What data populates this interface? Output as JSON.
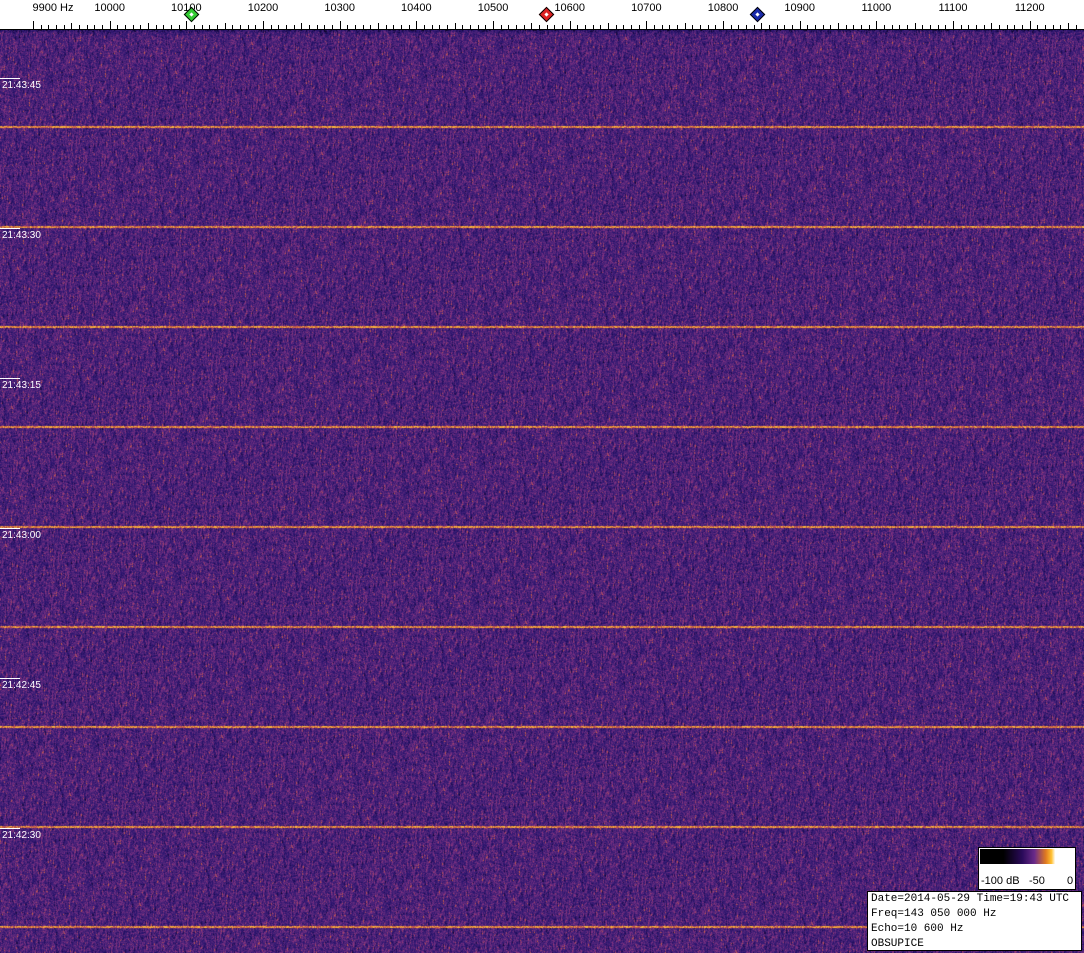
{
  "axis": {
    "unit": "Hz",
    "labels": [
      "9900 Hz",
      "10000",
      "10100",
      "10200",
      "10300",
      "10400",
      "10500",
      "10600",
      "10700",
      "10800",
      "10900",
      "11000",
      "11100",
      "11200"
    ],
    "start_hz": 9900,
    "step_hz": 100
  },
  "markers": [
    {
      "name": "green-marker",
      "color": "#33cc33",
      "freq_hz": 10107
    },
    {
      "name": "red-marker",
      "color": "#dd2222",
      "freq_hz": 10570
    },
    {
      "name": "blue-marker",
      "color": "#1a2aaa",
      "freq_hz": 10845
    }
  ],
  "time_labels": [
    "21:43:45",
    "21:43:30",
    "21:43:15",
    "21:43:00",
    "21:42:45",
    "21:42:30"
  ],
  "colorbar": {
    "labels": [
      "-100 dB",
      "-50",
      "0"
    ]
  },
  "info": {
    "line1": "Date=2014-05-29 Time=19:43 UTC",
    "line2": "Freq=143 050 000 Hz",
    "line3": "Echo=10 600 Hz",
    "line4": "OBSUPICE"
  },
  "colors": {
    "background": "#4a2370",
    "signal": "#f0a030"
  }
}
